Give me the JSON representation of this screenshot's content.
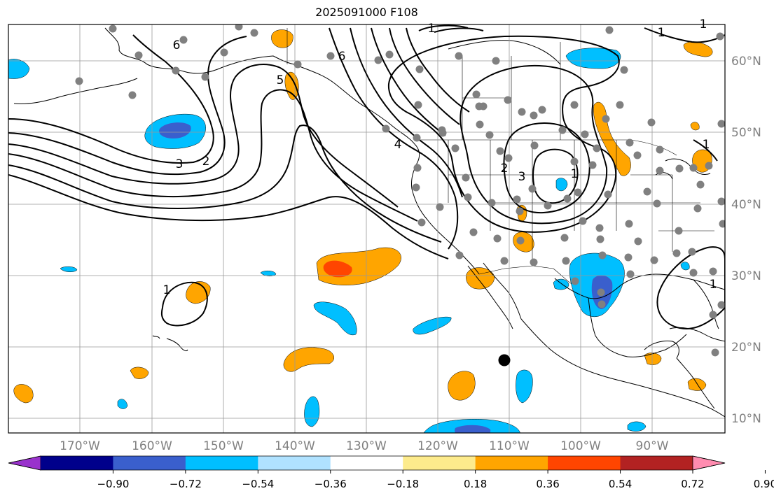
{
  "title": "2025091000 F108",
  "lon_labels": [
    "170°W",
    "160°W",
    "150°W",
    "140°W",
    "130°W",
    "120°W",
    "110°W",
    "100°W",
    "90°W"
  ],
  "lat_labels": [
    "60°N",
    "50°N",
    "40°N",
    "30°N",
    "20°N",
    "10°N"
  ],
  "colorbar": {
    "colors": [
      "#9932cc",
      "#00008b",
      "#3a5fcd",
      "#00bfff",
      "#b0e2ff",
      "#ffffff",
      "#fdeb8c",
      "#ffa500",
      "#ff4500",
      "#b22222",
      "#ff8cb0"
    ],
    "ticks": [
      "−0.90",
      "−0.72",
      "−0.54",
      "−0.36",
      "−0.18",
      "0.18",
      "0.36",
      "0.54",
      "0.72",
      "0.90"
    ]
  },
  "contour_labels": [
    "6",
    "5",
    "6",
    "1",
    "1",
    "2",
    "3",
    "4",
    "3",
    "2",
    "1",
    "1",
    "1",
    "1",
    "1"
  ],
  "colors": {
    "land_outline": "#000000",
    "grid": "#999999",
    "station": "#808080",
    "marker": "#000000",
    "axis_label": "#808080"
  }
}
